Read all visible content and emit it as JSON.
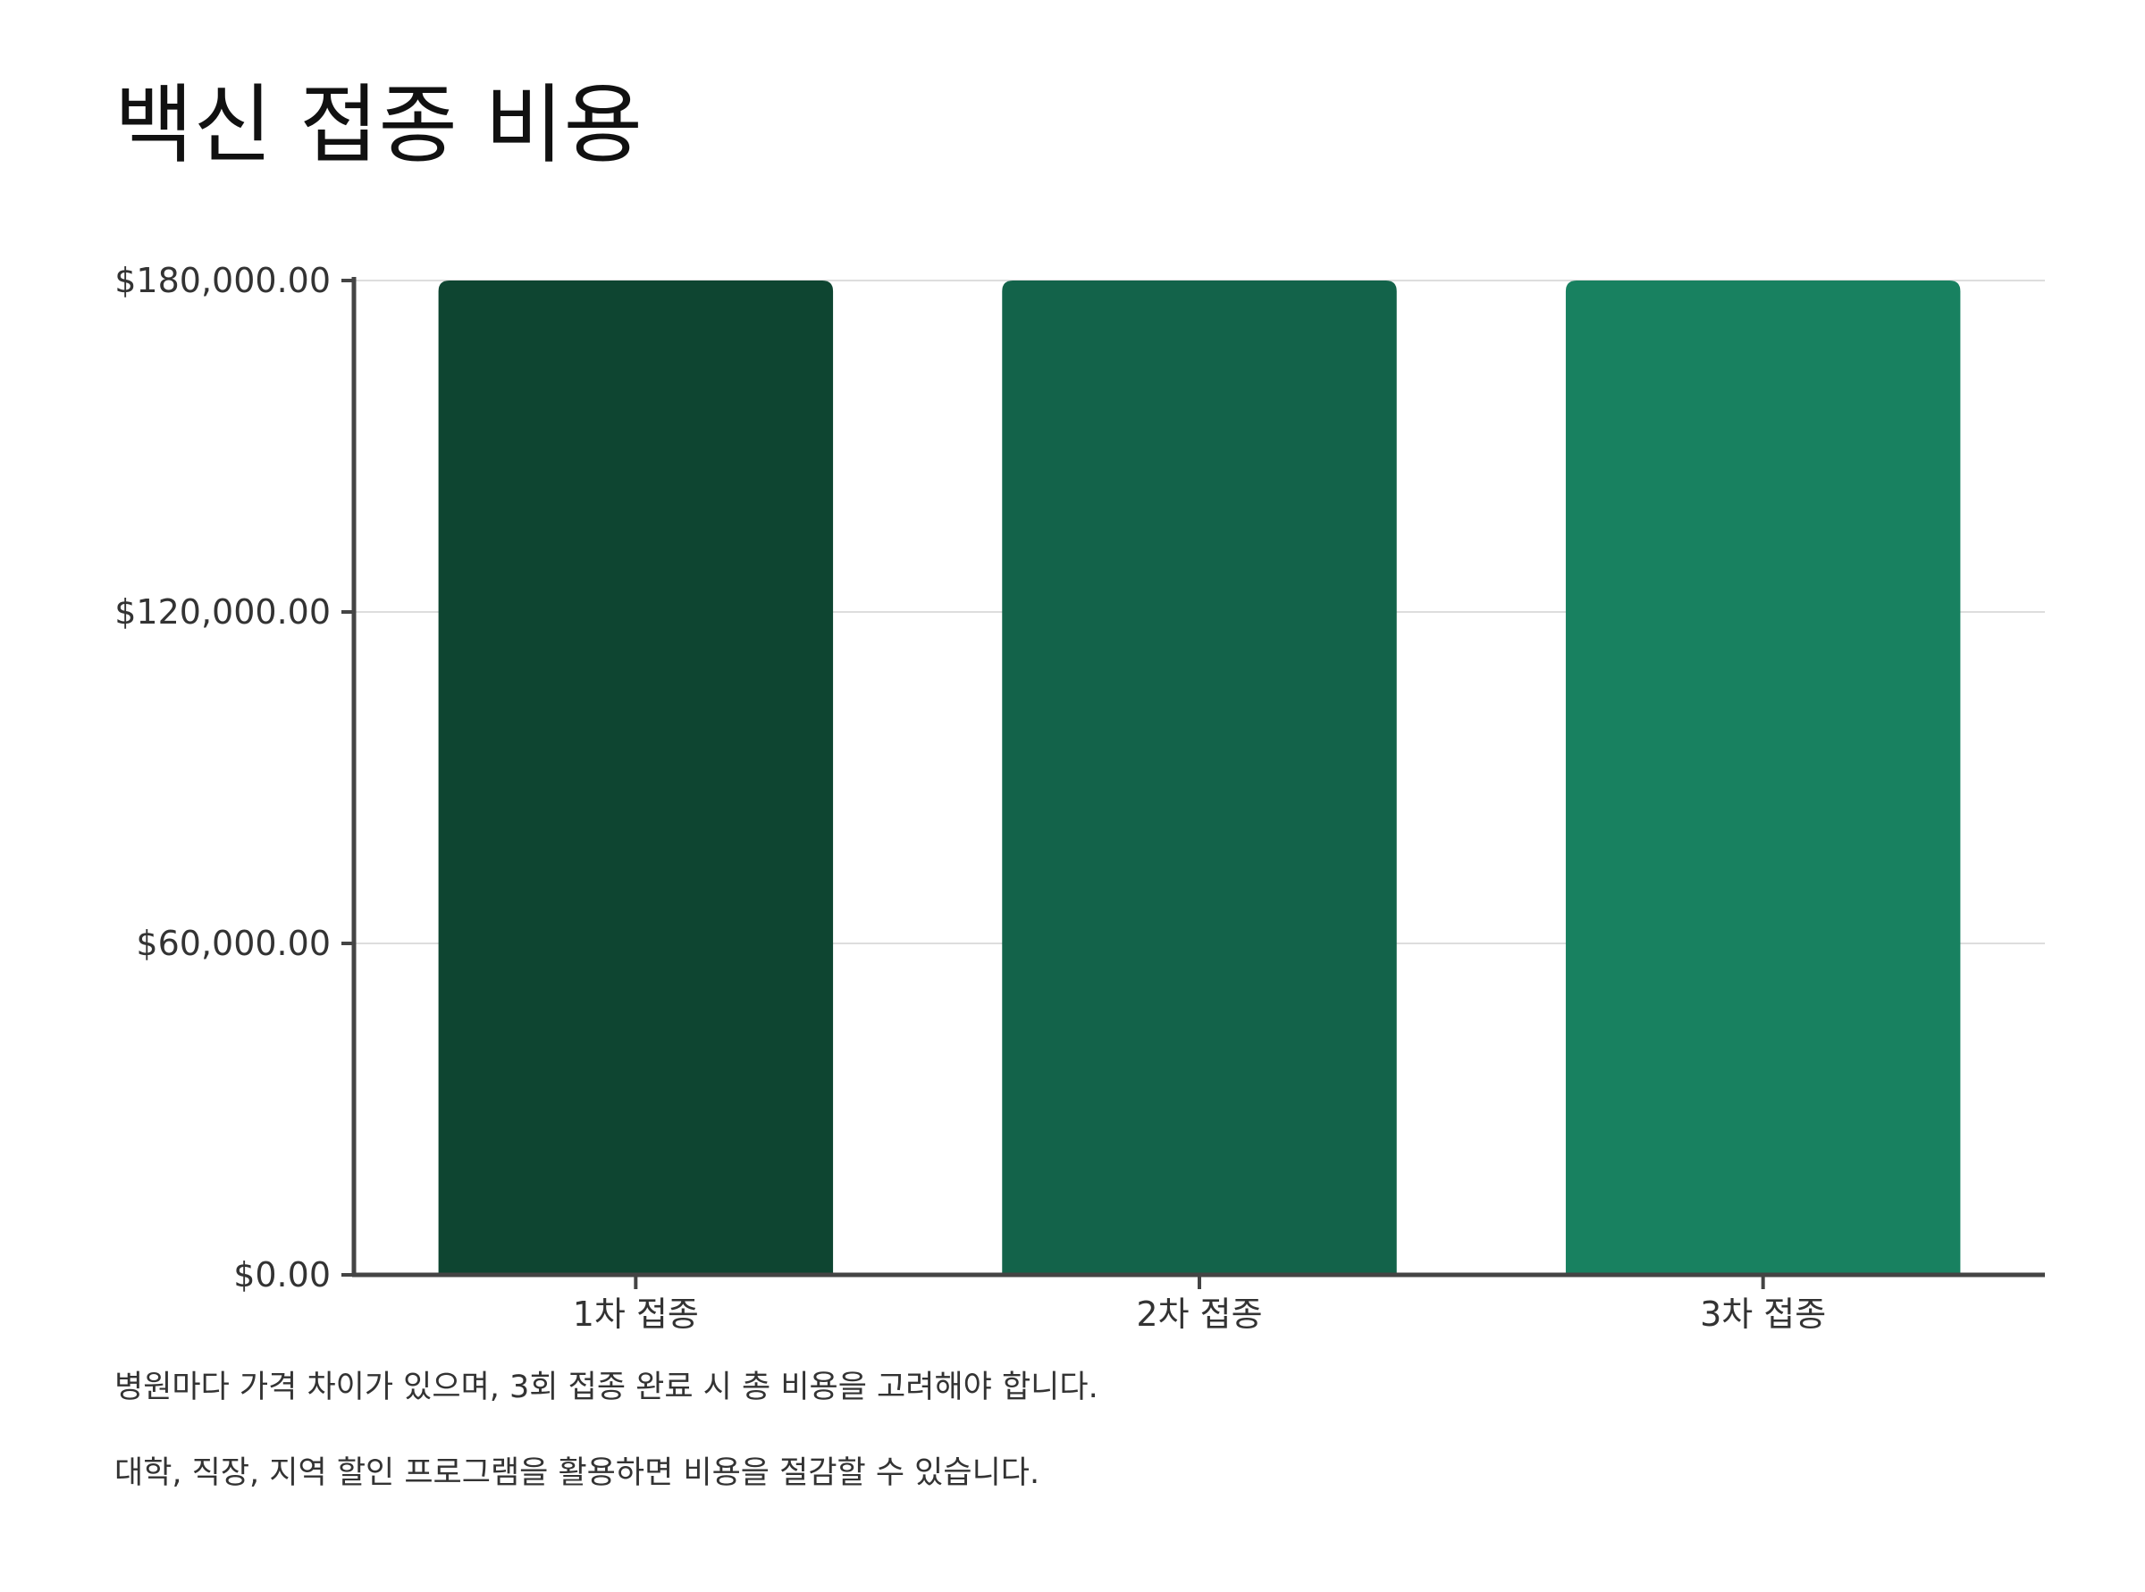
{
  "title": "백신 접종 비용",
  "chart_data": {
    "type": "bar",
    "categories": [
      "1차 접종",
      "2차 접종",
      "3차 접종"
    ],
    "values": [
      180000,
      180000,
      180000
    ],
    "y_ticks": [
      {
        "value": 0,
        "label": "$0.00"
      },
      {
        "value": 60000,
        "label": "$60,000.00"
      },
      {
        "value": 120000,
        "label": "$120,000.00"
      },
      {
        "value": 180000,
        "label": "$180,000.00"
      }
    ],
    "ylim": [
      0,
      180000
    ],
    "grid": true,
    "legend": "none",
    "colors": [
      "#0e4531",
      "#13634a",
      "#188160"
    ],
    "axis_color": "#444444",
    "grid_color": "#dddddd"
  },
  "notes": [
    "병원마다 가격 차이가 있으며, 3회 접종 완료 시 총 비용을 고려해야 합니다.",
    "대학, 직장, 지역 할인 프로그램을 활용하면 비용을 절감할 수 있습니다."
  ]
}
